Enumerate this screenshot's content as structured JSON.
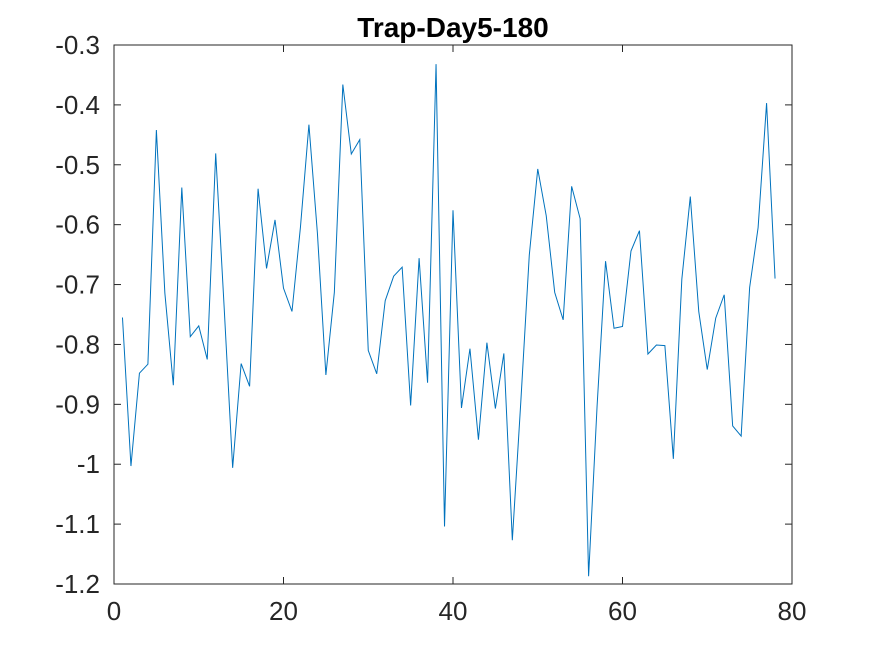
{
  "chart_data": {
    "type": "line",
    "title": "Trap-Day5-180",
    "xlabel": "",
    "ylabel": "",
    "xlim": [
      0,
      80
    ],
    "ylim": [
      -1.2,
      -0.3
    ],
    "xticks": [
      0,
      20,
      40,
      60,
      80
    ],
    "yticks": [
      -0.3,
      -0.4,
      -0.5,
      -0.6,
      -0.7,
      -0.8,
      -0.9,
      -1,
      -1.1,
      -1.2
    ],
    "grid": false,
    "series_color": "#0072BD",
    "series": [
      {
        "x": [
          1,
          2,
          3,
          4,
          5,
          6,
          7,
          8,
          9,
          10,
          11,
          12,
          13,
          14,
          15,
          16,
          17,
          18,
          19,
          20,
          21,
          22,
          23,
          24,
          25,
          26,
          27,
          28,
          29,
          30,
          31,
          32,
          33,
          34,
          35,
          36,
          37,
          38,
          39,
          40,
          41,
          42,
          43,
          44,
          45,
          46,
          47,
          48,
          49,
          50,
          51,
          52,
          53,
          54,
          55,
          56,
          57,
          58,
          59,
          60,
          61,
          62,
          63,
          64,
          65,
          66,
          67,
          68,
          69,
          70,
          71,
          72,
          73,
          74,
          75,
          76,
          77,
          78
        ],
        "values": [
          -0.755,
          -1.003,
          -0.848,
          -0.833,
          -0.442,
          -0.714,
          -0.868,
          -0.538,
          -0.787,
          -0.769,
          -0.825,
          -0.481,
          -0.739,
          -1.006,
          -0.832,
          -0.87,
          -0.54,
          -0.673,
          -0.592,
          -0.706,
          -0.745,
          -0.604,
          -0.433,
          -0.614,
          -0.851,
          -0.713,
          -0.366,
          -0.482,
          -0.458,
          -0.81,
          -0.849,
          -0.727,
          -0.686,
          -0.671,
          -0.902,
          -0.656,
          -0.864,
          -0.332,
          -1.104,
          -0.576,
          -0.906,
          -0.807,
          -0.959,
          -0.797,
          -0.907,
          -0.815,
          -1.127,
          -0.896,
          -0.651,
          -0.507,
          -0.585,
          -0.713,
          -0.759,
          -0.536,
          -0.59,
          -1.187,
          -0.903,
          -0.661,
          -0.773,
          -0.77,
          -0.644,
          -0.61,
          -0.816,
          -0.801,
          -0.802,
          -0.991,
          -0.691,
          -0.553,
          -0.745,
          -0.842,
          -0.756,
          -0.717,
          -0.936,
          -0.953,
          -0.705,
          -0.605,
          -0.397,
          -0.69
        ]
      }
    ]
  }
}
